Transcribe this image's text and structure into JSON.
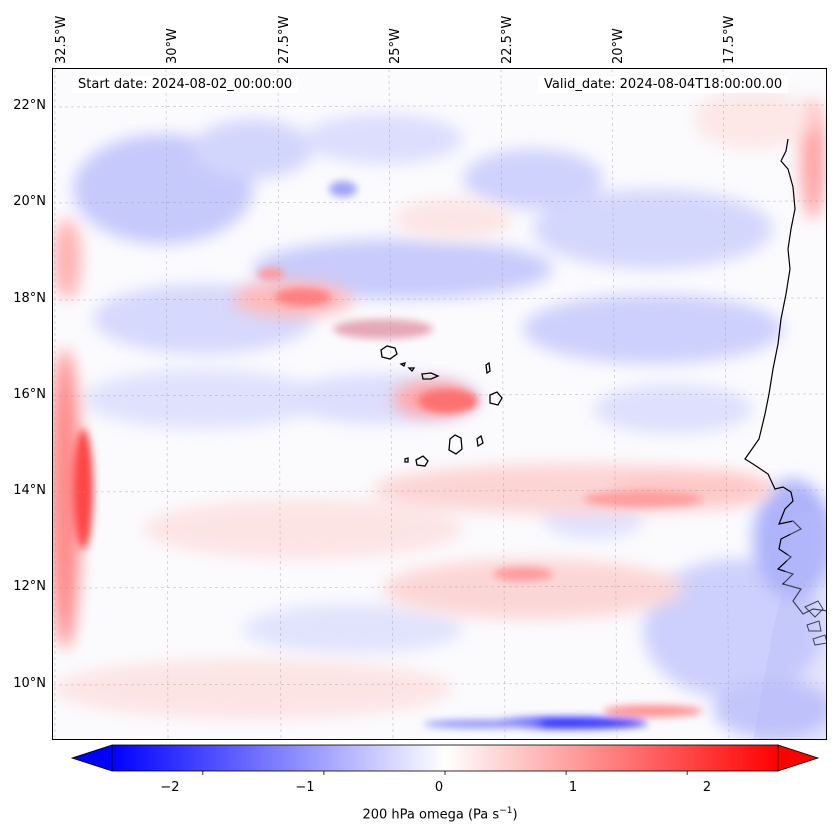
{
  "map": {
    "start_date": "Start date: 2024-08-02_00:00:00",
    "valid_date": "Valid_date: 2024-08-04T18:00:00.00",
    "lon_labels": [
      "32.5°W",
      "30°W",
      "27.5°W",
      "25°W",
      "22.5°W",
      "20°W",
      "17.5°W"
    ],
    "lat_labels": [
      "22°N",
      "20°N",
      "18°N",
      "16°N",
      "14°N",
      "12°N",
      "10°N"
    ]
  },
  "colorbar": {
    "ticks": [
      "−2",
      "−1",
      "0",
      "1",
      "2"
    ],
    "label": "200 hPa omega (Pa s",
    "label_exp": "−1",
    "label_end": ")",
    "vmin": -2.75,
    "vmax": 2.75,
    "colors": {
      "negative": "#0000ff",
      "zero": "#ffffff",
      "positive": "#ff0000"
    }
  }
}
